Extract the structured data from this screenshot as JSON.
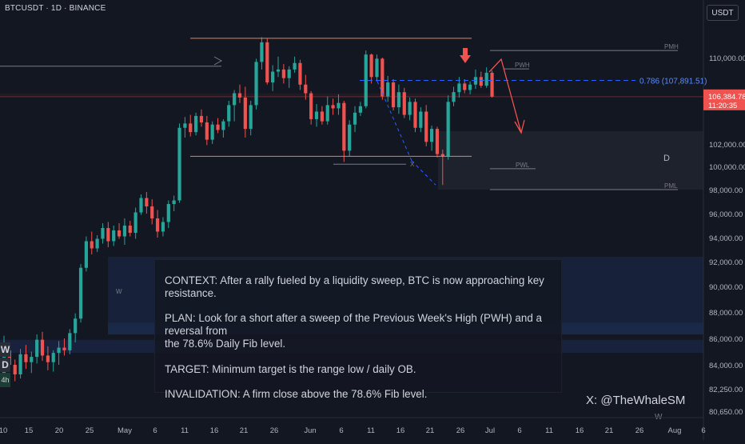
{
  "header": {
    "symbol_label": "BTCUSDT · 1D · BINANCE",
    "currency_button": "USDT"
  },
  "note": {
    "context": "CONTEXT: After a rally fueled by a liquidity sweep, BTC is now approaching key resistance.",
    "plan": "PLAN: Look for a short after a sweep of the Previous Week's High (PWH) and a reversal from\nthe 78.6% Daily Fib level.",
    "target": "TARGET: Minimum target is the range low / daily OB.",
    "invalidation": "INVALIDATION: A firm close above the 78.6% Fib level."
  },
  "watermark": "X: @TheWhaleSM",
  "side_tags": [
    "W",
    "D",
    "4h"
  ],
  "colors": {
    "background": "#131722",
    "up": "#26a69a",
    "down": "#ef5350",
    "fib_line": "#2962ff",
    "orange_line": "#e8835a",
    "zone_fill": "#2a2e39",
    "ob_zone": "#1e3a6e"
  },
  "chart_data": {
    "type": "candlestick",
    "symbol": "BTCUSDT",
    "timeframe": "1D",
    "exchange": "BINANCE",
    "x_tick_labels": [
      "10",
      "15",
      "20",
      "25",
      "May",
      "6",
      "11",
      "16",
      "21",
      "26",
      "Jun",
      "6",
      "11",
      "16",
      "21",
      "26",
      "Jul",
      "6",
      "11",
      "16",
      "21",
      "26",
      "Aug",
      "6"
    ],
    "y_tick_labels": [
      "110,000.00",
      "102,000.00",
      "100,000.00",
      "98,000.00",
      "96,000.00",
      "94,000.00",
      "92,000.00",
      "90,000.00",
      "88,000.00",
      "86,000.00",
      "84,000.00",
      "82,250.00",
      "80,650.00"
    ],
    "y_ticks": [
      110000,
      102000,
      100000,
      98000,
      96000,
      94000,
      92000,
      90000,
      88000,
      86000,
      84000,
      82250,
      80650
    ],
    "ylim": [
      79800,
      115500
    ],
    "current_price": {
      "value": "106,384.78",
      "countdown": "11:20:35"
    },
    "fib_level": {
      "label": "0.786 (107,891.51)",
      "value": 107891.51
    },
    "levels": [
      {
        "label": "PMH",
        "value": 110700
      },
      {
        "label": "PWH",
        "value": 108950
      },
      {
        "label": "PWL",
        "value": 99800
      },
      {
        "label": "PML",
        "value": 98000
      },
      {
        "label": "X",
        "value": 100200
      }
    ],
    "zone_labels": {
      "daily": "D",
      "weekly": "W",
      "weekly_right": "W"
    },
    "candles_ohlc": [
      [
        83200,
        86200,
        82400,
        85100
      ],
      [
        85100,
        85600,
        83500,
        84000
      ],
      [
        84000,
        84400,
        82800,
        83300
      ],
      [
        83300,
        85200,
        83000,
        84800
      ],
      [
        84800,
        85500,
        83700,
        84200
      ],
      [
        84200,
        85000,
        83400,
        84600
      ],
      [
        84600,
        86300,
        84100,
        85900
      ],
      [
        85900,
        86500,
        84300,
        84700
      ],
      [
        84700,
        85400,
        83600,
        84200
      ],
      [
        84200,
        85100,
        83500,
        84900
      ],
      [
        84900,
        85800,
        84000,
        85300
      ],
      [
        85300,
        86000,
        84700,
        85100
      ],
      [
        85100,
        86700,
        84800,
        86400
      ],
      [
        86400,
        87900,
        85700,
        87500
      ],
      [
        87500,
        91800,
        87200,
        91500
      ],
      [
        91500,
        94100,
        91200,
        93700
      ],
      [
        93700,
        94500,
        92600,
        93100
      ],
      [
        93100,
        94200,
        92800,
        93900
      ],
      [
        93900,
        95200,
        93500,
        94800
      ],
      [
        94800,
        95300,
        93200,
        93700
      ],
      [
        93700,
        95000,
        93300,
        94600
      ],
      [
        94600,
        95200,
        93900,
        94100
      ],
      [
        94100,
        95600,
        93400,
        95000
      ],
      [
        95000,
        95400,
        94100,
        94400
      ],
      [
        94400,
        96500,
        93900,
        96100
      ],
      [
        96100,
        97600,
        95900,
        97300
      ],
      [
        97300,
        97800,
        96000,
        96600
      ],
      [
        96600,
        97200,
        95100,
        95600
      ],
      [
        95600,
        96300,
        94000,
        94500
      ],
      [
        94500,
        95700,
        94100,
        95300
      ],
      [
        95300,
        97100,
        94800,
        96800
      ],
      [
        96800,
        97500,
        96200,
        97100
      ],
      [
        97100,
        103900,
        96900,
        103500
      ],
      [
        103500,
        104500,
        102600,
        103900
      ],
      [
        103900,
        104700,
        102700,
        103100
      ],
      [
        103100,
        104900,
        102800,
        104600
      ],
      [
        104600,
        105200,
        103600,
        104000
      ],
      [
        104000,
        104600,
        101900,
        102400
      ],
      [
        102400,
        104100,
        102000,
        103800
      ],
      [
        103800,
        104400,
        103000,
        103300
      ],
      [
        103300,
        104300,
        102600,
        104100
      ],
      [
        104100,
        106000,
        103600,
        105600
      ],
      [
        105600,
        107000,
        104100,
        106700
      ],
      [
        106700,
        107500,
        105800,
        106300
      ],
      [
        106300,
        107300,
        102600,
        103400
      ],
      [
        103400,
        106000,
        102800,
        105600
      ],
      [
        105600,
        109900,
        105200,
        109600
      ],
      [
        109600,
        112000,
        108900,
        111500
      ],
      [
        111500,
        111900,
        107500,
        107700
      ],
      [
        107700,
        109300,
        106900,
        108700
      ],
      [
        108700,
        110100,
        108200,
        108900
      ],
      [
        108900,
        109400,
        107600,
        108100
      ],
      [
        108100,
        109200,
        107200,
        108900
      ],
      [
        108900,
        110100,
        108600,
        109500
      ],
      [
        109500,
        109800,
        107000,
        107500
      ],
      [
        107500,
        108400,
        106100,
        106700
      ],
      [
        106700,
        106900,
        103800,
        104300
      ],
      [
        104300,
        105700,
        103600,
        105000
      ],
      [
        105000,
        105500,
        103800,
        104100
      ],
      [
        104100,
        106400,
        103800,
        105600
      ],
      [
        105600,
        106200,
        104700,
        105300
      ],
      [
        105300,
        106600,
        104700,
        105800
      ],
      [
        105800,
        106000,
        100400,
        101400
      ],
      [
        101400,
        104200,
        100900,
        103800
      ],
      [
        103800,
        105500,
        103100,
        104900
      ],
      [
        104900,
        105900,
        104600,
        105500
      ],
      [
        105500,
        110700,
        105300,
        110300
      ],
      [
        110300,
        110400,
        107600,
        108200
      ],
      [
        108200,
        110300,
        107800,
        109900
      ],
      [
        109900,
        110000,
        106100,
        106400
      ],
      [
        106400,
        108300,
        105900,
        107700
      ],
      [
        107700,
        108000,
        105100,
        105400
      ],
      [
        105400,
        107500,
        104800,
        106800
      ],
      [
        106800,
        107200,
        104400,
        104700
      ],
      [
        104700,
        106300,
        104200,
        105900
      ],
      [
        105900,
        106200,
        103100,
        103500
      ],
      [
        103500,
        105400,
        103100,
        105000
      ],
      [
        105000,
        105600,
        101800,
        102200
      ],
      [
        102200,
        103700,
        101400,
        103400
      ],
      [
        103400,
        103600,
        100800,
        101100
      ],
      [
        101100,
        101500,
        98400,
        100900
      ],
      [
        100900,
        106500,
        100600,
        105900
      ],
      [
        105900,
        107300,
        105500,
        106800
      ],
      [
        106800,
        108200,
        106300,
        107600
      ],
      [
        107600,
        108000,
        106700,
        107000
      ],
      [
        107000,
        107800,
        106600,
        107500
      ],
      [
        107500,
        108900,
        107100,
        108200
      ],
      [
        108200,
        108700,
        107200,
        107400
      ],
      [
        107400,
        109100,
        107200,
        108600
      ],
      [
        108600,
        108800,
        106300,
        106384.78
      ]
    ]
  }
}
